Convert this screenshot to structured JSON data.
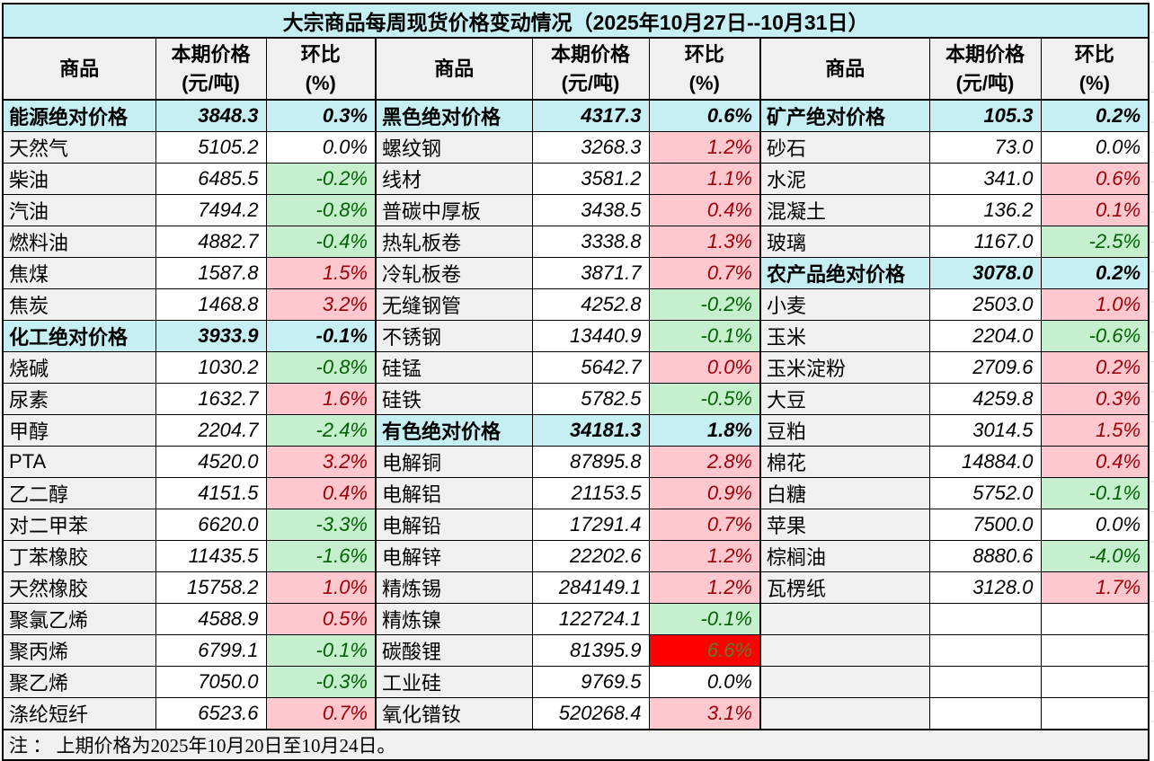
{
  "title": "大宗商品每周现货价格变动情况（2025年10月27日--10月31日）",
  "columns": {
    "commodity": "商品",
    "price_line1": "本期价格",
    "price_line2": "(元/吨)",
    "pct_line1": "环比",
    "pct_line2": "(%)"
  },
  "note": "注 ： 上期价格为2025年10月20日至10月24日。",
  "colors": {
    "accent_cyan": "#C5EFF2",
    "header_gray": "#F0F0F0",
    "up_bg": "#FFC7CE",
    "up_text": "#9C0006",
    "down_bg": "#C6EFCE",
    "down_text": "#006100",
    "alert_bg": "#FF0000",
    "alert_text": "#5D7B2F",
    "border": "#000000"
  },
  "chart_data": {
    "type": "table",
    "title": "大宗商品每周现货价格变动情况（2025年10月27日--10月31日）",
    "column_headers": [
      "商品",
      "本期价格(元/吨)",
      "环比(%)"
    ],
    "groups": [
      {
        "rows": [
          {
            "name": "能源绝对价格",
            "price": "3848.3",
            "pct": "0.3%",
            "type": "summary"
          },
          {
            "name": "天然气",
            "price": "5105.2",
            "pct": "0.0%",
            "type": "flat"
          },
          {
            "name": "柴油",
            "price": "6485.5",
            "pct": "-0.2%",
            "type": "down"
          },
          {
            "name": "汽油",
            "price": "7494.2",
            "pct": "-0.8%",
            "type": "down"
          },
          {
            "name": "燃料油",
            "price": "4882.7",
            "pct": "-0.4%",
            "type": "down"
          },
          {
            "name": "焦煤",
            "price": "1587.8",
            "pct": "1.5%",
            "type": "up"
          },
          {
            "name": "焦炭",
            "price": "1468.8",
            "pct": "3.2%",
            "type": "up"
          },
          {
            "name": "化工绝对价格",
            "price": "3933.9",
            "pct": "-0.1%",
            "type": "summary"
          },
          {
            "name": "烧碱",
            "price": "1030.2",
            "pct": "-0.8%",
            "type": "down"
          },
          {
            "name": "尿素",
            "price": "1632.7",
            "pct": "1.6%",
            "type": "up"
          },
          {
            "name": "甲醇",
            "price": "2204.7",
            "pct": "-2.4%",
            "type": "down"
          },
          {
            "name": "PTA",
            "price": "4520.0",
            "pct": "3.2%",
            "type": "up"
          },
          {
            "name": "乙二醇",
            "price": "4151.5",
            "pct": "0.4%",
            "type": "up"
          },
          {
            "name": "对二甲苯",
            "price": "6620.0",
            "pct": "-3.3%",
            "type": "down"
          },
          {
            "name": "丁苯橡胶",
            "price": "11435.5",
            "pct": "-1.6%",
            "type": "down"
          },
          {
            "name": "天然橡胶",
            "price": "15758.2",
            "pct": "1.0%",
            "type": "up"
          },
          {
            "name": "聚氯乙烯",
            "price": "4588.9",
            "pct": "0.5%",
            "type": "up"
          },
          {
            "name": "聚丙烯",
            "price": "6799.1",
            "pct": "-0.1%",
            "type": "down"
          },
          {
            "name": "聚乙烯",
            "price": "7050.0",
            "pct": "-0.3%",
            "type": "down"
          },
          {
            "name": "涤纶短纤",
            "price": "6523.6",
            "pct": "0.7%",
            "type": "up"
          }
        ]
      },
      {
        "rows": [
          {
            "name": "黑色绝对价格",
            "price": "4317.3",
            "pct": "0.6%",
            "type": "summary"
          },
          {
            "name": "螺纹钢",
            "price": "3268.3",
            "pct": "1.2%",
            "type": "up"
          },
          {
            "name": "线材",
            "price": "3581.2",
            "pct": "1.1%",
            "type": "up"
          },
          {
            "name": "普碳中厚板",
            "price": "3438.5",
            "pct": "0.4%",
            "type": "up"
          },
          {
            "name": "热轧板卷",
            "price": "3338.8",
            "pct": "1.3%",
            "type": "up"
          },
          {
            "name": "冷轧板卷",
            "price": "3871.7",
            "pct": "0.7%",
            "type": "up"
          },
          {
            "name": "无缝钢管",
            "price": "4252.8",
            "pct": "-0.2%",
            "type": "down"
          },
          {
            "name": "不锈钢",
            "price": "13440.9",
            "pct": "-0.1%",
            "type": "down"
          },
          {
            "name": "硅锰",
            "price": "5642.7",
            "pct": "0.0%",
            "type": "up"
          },
          {
            "name": "硅铁",
            "price": "5782.5",
            "pct": "-0.5%",
            "type": "down"
          },
          {
            "name": "有色绝对价格",
            "price": "34181.3",
            "pct": "1.8%",
            "type": "summary"
          },
          {
            "name": "电解铜",
            "price": "87895.8",
            "pct": "2.8%",
            "type": "up"
          },
          {
            "name": "电解铝",
            "price": "21153.5",
            "pct": "0.9%",
            "type": "up"
          },
          {
            "name": "电解铅",
            "price": "17291.4",
            "pct": "0.7%",
            "type": "up"
          },
          {
            "name": "电解锌",
            "price": "22202.6",
            "pct": "1.2%",
            "type": "up"
          },
          {
            "name": "精炼锡",
            "price": "284149.1",
            "pct": "1.2%",
            "type": "up"
          },
          {
            "name": "精炼镍",
            "price": "122724.1",
            "pct": "-0.1%",
            "type": "down"
          },
          {
            "name": "碳酸锂",
            "price": "81395.9",
            "pct": "6.6%",
            "type": "alert"
          },
          {
            "name": "工业硅",
            "price": "9769.5",
            "pct": "0.0%",
            "type": "flat"
          },
          {
            "name": "氧化镨钕",
            "price": "520268.4",
            "pct": "3.1%",
            "type": "up"
          }
        ]
      },
      {
        "rows": [
          {
            "name": "矿产绝对价格",
            "price": "105.3",
            "pct": "0.2%",
            "type": "summary"
          },
          {
            "name": "砂石",
            "price": "73.0",
            "pct": "0.0%",
            "type": "flat"
          },
          {
            "name": "水泥",
            "price": "341.0",
            "pct": "0.6%",
            "type": "up"
          },
          {
            "name": "混凝土",
            "price": "136.2",
            "pct": "0.1%",
            "type": "up"
          },
          {
            "name": "玻璃",
            "price": "1167.0",
            "pct": "-2.5%",
            "type": "down"
          },
          {
            "name": "农产品绝对价格",
            "price": "3078.0",
            "pct": "0.2%",
            "type": "summary"
          },
          {
            "name": "小麦",
            "price": "2503.0",
            "pct": "1.0%",
            "type": "up"
          },
          {
            "name": "玉米",
            "price": "2204.0",
            "pct": "-0.6%",
            "type": "down"
          },
          {
            "name": "玉米淀粉",
            "price": "2709.6",
            "pct": "0.2%",
            "type": "up"
          },
          {
            "name": "大豆",
            "price": "4259.8",
            "pct": "0.3%",
            "type": "up"
          },
          {
            "name": "豆粕",
            "price": "3014.5",
            "pct": "1.5%",
            "type": "up"
          },
          {
            "name": "棉花",
            "price": "14884.0",
            "pct": "0.4%",
            "type": "up"
          },
          {
            "name": "白糖",
            "price": "5752.0",
            "pct": "-0.1%",
            "type": "down"
          },
          {
            "name": "苹果",
            "price": "7500.0",
            "pct": "0.0%",
            "type": "flat"
          },
          {
            "name": "棕榈油",
            "price": "8880.6",
            "pct": "-4.0%",
            "type": "down"
          },
          {
            "name": "瓦楞纸",
            "price": "3128.0",
            "pct": "1.7%",
            "type": "up"
          },
          {
            "name": "",
            "price": "",
            "pct": "",
            "type": "empty"
          },
          {
            "name": "",
            "price": "",
            "pct": "",
            "type": "empty"
          },
          {
            "name": "",
            "price": "",
            "pct": "",
            "type": "empty"
          },
          {
            "name": "",
            "price": "",
            "pct": "",
            "type": "empty"
          }
        ]
      }
    ]
  }
}
